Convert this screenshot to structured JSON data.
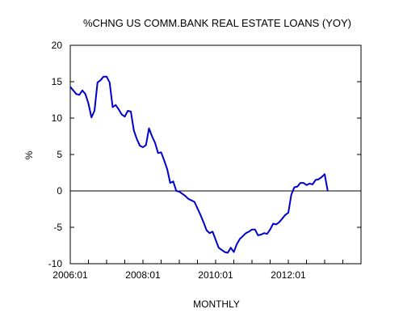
{
  "chart_data": {
    "type": "line",
    "title": "%CHNG US COMM.BANK REAL ESTATE LOANS (YOY)",
    "xlabel": "MONTHLY",
    "ylabel": "%",
    "x_tick_labels": [
      "2006:01",
      "2008:01",
      "2010:01",
      "2012:01"
    ],
    "y_tick_labels": [
      "20",
      "15",
      "10",
      "5",
      "0",
      "-5",
      "-10"
    ],
    "ylim": [
      -10,
      20
    ],
    "xlim": [
      "2006:01",
      "2013:12"
    ],
    "reference_line_y": 0,
    "grid": false,
    "series_color": "#0000cc",
    "x": [
      "2006:01",
      "2006:02",
      "2006:03",
      "2006:04",
      "2006:05",
      "2006:06",
      "2006:07",
      "2006:08",
      "2006:09",
      "2006:10",
      "2006:11",
      "2006:12",
      "2007:01",
      "2007:02",
      "2007:03",
      "2007:04",
      "2007:05",
      "2007:06",
      "2007:07",
      "2007:08",
      "2007:09",
      "2007:10",
      "2007:11",
      "2007:12",
      "2008:01",
      "2008:02",
      "2008:03",
      "2008:04",
      "2008:05",
      "2008:06",
      "2008:07",
      "2008:08",
      "2008:09",
      "2008:10",
      "2008:11",
      "2008:12",
      "2009:01",
      "2009:02",
      "2009:03",
      "2009:04",
      "2009:05",
      "2009:06",
      "2009:07",
      "2009:08",
      "2009:09",
      "2009:10",
      "2009:11",
      "2009:12",
      "2010:01",
      "2010:02",
      "2010:03",
      "2010:04",
      "2010:05",
      "2010:06",
      "2010:07",
      "2010:08",
      "2010:09",
      "2010:10",
      "2010:11",
      "2010:12",
      "2011:01",
      "2011:02",
      "2011:03",
      "2011:04",
      "2011:05",
      "2011:06",
      "2011:07",
      "2011:08",
      "2011:09",
      "2011:10",
      "2011:11",
      "2011:12",
      "2012:01",
      "2012:02",
      "2012:03",
      "2012:04",
      "2012:05",
      "2012:06",
      "2012:07",
      "2012:08",
      "2012:09",
      "2012:10",
      "2012:11",
      "2012:12",
      "2013:01",
      "2013:02"
    ],
    "values": [
      14.3,
      13.8,
      13.3,
      13.2,
      13.8,
      13.3,
      12.0,
      10.1,
      11.0,
      14.9,
      15.2,
      15.7,
      15.7,
      14.9,
      11.5,
      11.8,
      11.2,
      10.5,
      10.2,
      11.0,
      10.9,
      8.3,
      7.1,
      6.2,
      6.0,
      6.3,
      8.6,
      7.5,
      6.6,
      5.2,
      5.3,
      4.2,
      3.0,
      1.1,
      1.3,
      0.0,
      -0.1,
      -0.4,
      -0.7,
      -1.1,
      -1.3,
      -1.5,
      -2.4,
      -3.3,
      -4.3,
      -5.4,
      -5.8,
      -5.6,
      -6.7,
      -7.8,
      -8.1,
      -8.4,
      -8.5,
      -7.8,
      -8.4,
      -7.3,
      -6.6,
      -6.2,
      -5.8,
      -5.6,
      -5.3,
      -5.3,
      -6.1,
      -6.0,
      -5.8,
      -5.9,
      -5.3,
      -4.5,
      -4.6,
      -4.3,
      -3.8,
      -3.3,
      -3.0,
      -0.5,
      0.5,
      0.6,
      1.1,
      1.1,
      0.8,
      1.0,
      0.9,
      1.5,
      1.6,
      1.9,
      2.3,
      0.0
    ]
  }
}
